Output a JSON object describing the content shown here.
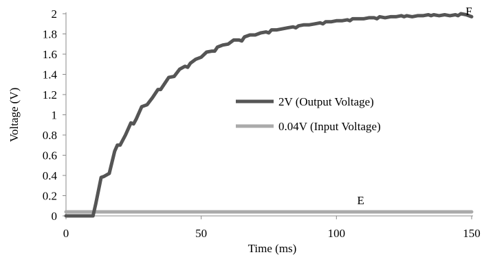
{
  "chart_data": {
    "type": "line",
    "xlabel": "Time (ms)",
    "ylabel": "Voltage (V)",
    "xlim": [
      0,
      150
    ],
    "ylim": [
      0,
      2
    ],
    "xticks": [
      "0",
      "50",
      "100",
      "150"
    ],
    "yticks": [
      "0",
      "0.2",
      "0.4",
      "0.6",
      "0.8",
      "1",
      "1.2",
      "1.4",
      "1.6",
      "1.8",
      "2"
    ],
    "grid": false,
    "legend_position": "center-right",
    "series": [
      {
        "name": "2V (Output Voltage)",
        "color": "#555555",
        "x": [
          0,
          5,
          10,
          11,
          12,
          13,
          14,
          16,
          18,
          19,
          20,
          22,
          24,
          25,
          26,
          28,
          30,
          32,
          34,
          35,
          36,
          38,
          40,
          42,
          44,
          45,
          46,
          48,
          50,
          52,
          54,
          55,
          56,
          58,
          60,
          62,
          64,
          65,
          66,
          68,
          70,
          72,
          74,
          75,
          76,
          78,
          80,
          82,
          84,
          85,
          86,
          88,
          90,
          92,
          94,
          95,
          96,
          98,
          100,
          102,
          104,
          105,
          106,
          108,
          110,
          112,
          114,
          115,
          116,
          118,
          120,
          122,
          124,
          125,
          126,
          128,
          130,
          132,
          134,
          135,
          136,
          138,
          140,
          142,
          144,
          145,
          146,
          148,
          150
        ],
        "y": [
          0,
          0,
          0,
          0.12,
          0.25,
          0.38,
          0.39,
          0.42,
          0.64,
          0.7,
          0.7,
          0.8,
          0.92,
          0.91,
          0.96,
          1.08,
          1.1,
          1.17,
          1.25,
          1.25,
          1.29,
          1.37,
          1.38,
          1.45,
          1.48,
          1.47,
          1.51,
          1.55,
          1.57,
          1.62,
          1.63,
          1.63,
          1.67,
          1.69,
          1.7,
          1.74,
          1.74,
          1.73,
          1.77,
          1.79,
          1.79,
          1.81,
          1.82,
          1.81,
          1.84,
          1.84,
          1.85,
          1.86,
          1.87,
          1.86,
          1.88,
          1.89,
          1.89,
          1.9,
          1.91,
          1.9,
          1.92,
          1.92,
          1.93,
          1.93,
          1.94,
          1.93,
          1.95,
          1.95,
          1.95,
          1.96,
          1.96,
          1.95,
          1.97,
          1.96,
          1.97,
          1.97,
          1.98,
          1.97,
          1.98,
          1.97,
          1.98,
          1.98,
          1.99,
          1.98,
          1.99,
          1.98,
          1.99,
          1.98,
          1.99,
          1.98,
          2.0,
          1.99,
          1.97
        ]
      },
      {
        "name": "0.04V (Input Voltage)",
        "color": "#aaaaaa",
        "x": [
          0,
          150
        ],
        "y": [
          0.04,
          0.04
        ]
      }
    ],
    "annotations": [
      {
        "text": "F",
        "x": 150,
        "y": 2.0
      },
      {
        "text": "E",
        "x": 109,
        "y": 0.06
      }
    ]
  }
}
